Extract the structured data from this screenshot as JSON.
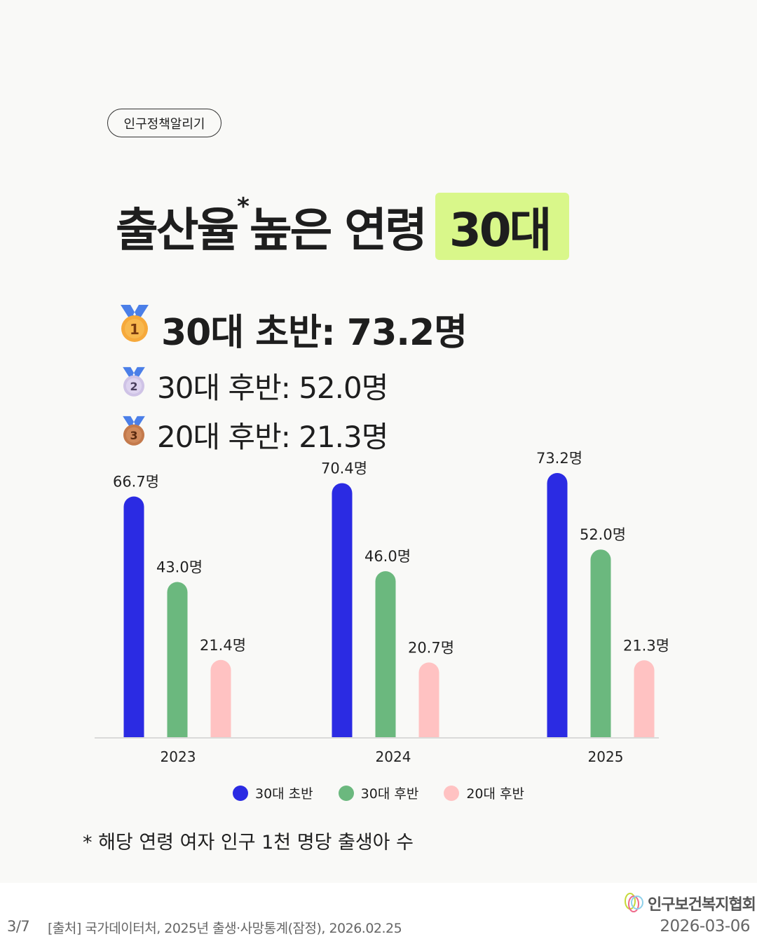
{
  "tag": "인구정책알리기",
  "title": {
    "text": "출산율",
    "asterisk": "*",
    "rest": "높은 연령",
    "highlight": "30대",
    "highlight_color": "#d9f78a"
  },
  "ranking": [
    {
      "rank": "1",
      "icon": "gold-medal-icon",
      "text": "30대 초반: 73.2명"
    },
    {
      "rank": "2",
      "icon": "silver-medal-icon",
      "text": "30대 후반: 52.0명"
    },
    {
      "rank": "3",
      "icon": "bronze-medal-icon",
      "text": "20대 후반: 21.3명"
    }
  ],
  "chart_data": {
    "type": "bar",
    "categories": [
      "2023",
      "2024",
      "2025"
    ],
    "series": [
      {
        "name": "30대 초반",
        "color": "#2b2be3",
        "values": [
          66.7,
          70.4,
          73.2
        ],
        "labels": [
          "66.7명",
          "70.4명",
          "73.2명"
        ]
      },
      {
        "name": "30대 후반",
        "color": "#6bb87e",
        "values": [
          43.0,
          46.0,
          52.0
        ],
        "labels": [
          "43.0명",
          "46.0명",
          "52.0명"
        ]
      },
      {
        "name": "20대 후반",
        "color": "#ffc2c2",
        "values": [
          21.4,
          20.7,
          21.3
        ],
        "labels": [
          "21.4명",
          "20.7명",
          "21.3명"
        ]
      }
    ],
    "ylim": [
      0,
      80
    ],
    "grid": false,
    "legend": "bottom"
  },
  "footnote": "* 해당 연령 여자 인구 1천 명당 출생아 수",
  "footer": {
    "page": "3/7",
    "source": "[출처] 국가데이터처, 2025년 출생·사망통계(잠정), 2026.02.25",
    "org": "인구보건복지협회",
    "date": "2026-03-06"
  }
}
